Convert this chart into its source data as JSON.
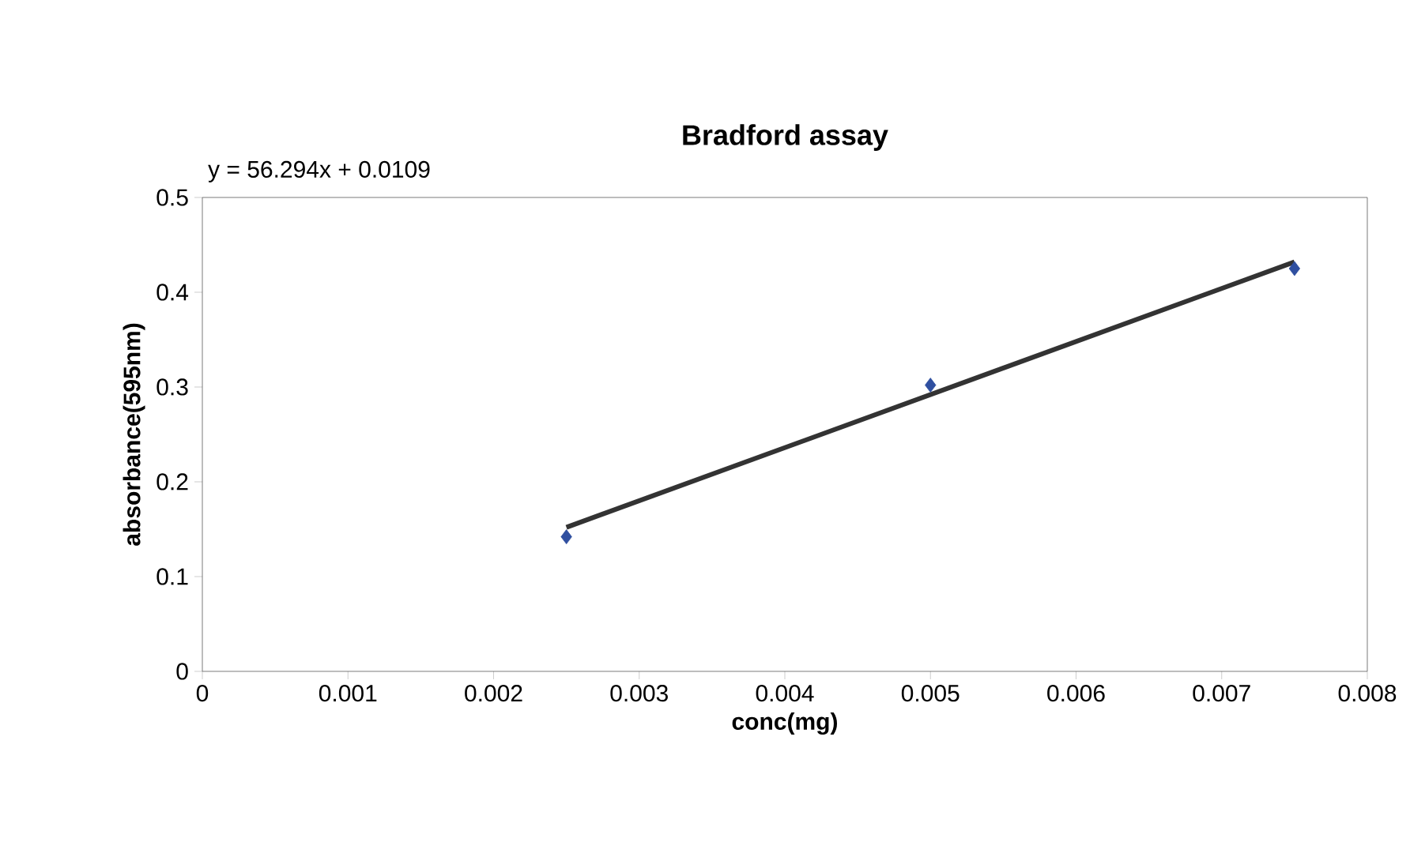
{
  "chart_data": {
    "type": "scatter",
    "title": "Bradford assay",
    "xlabel": "conc(mg)",
    "ylabel": "absorbance(595nm)",
    "annotations": [
      "y = 56.294x + 0.0109"
    ],
    "series": [
      {
        "color": "#2f4fa0",
        "marker": "diamond",
        "x": [
          0.0025,
          0.005,
          0.0075
        ],
        "values": [
          0.142,
          0.302,
          0.425
        ]
      },
      {
        "type": "line",
        "color": "#333333",
        "line_style": "solid",
        "x": [
          0.0025,
          0.0075
        ],
        "values": [
          0.152,
          0.432
        ]
      }
    ],
    "xlim": [
      0,
      0.008
    ],
    "xticks": [
      0,
      0.001,
      0.002,
      0.003,
      0.004,
      0.005,
      0.006,
      0.007,
      0.008
    ],
    "ylim": [
      0,
      0.5
    ],
    "yticks": [
      0,
      0.1,
      0.2,
      0.3,
      0.4,
      0.5
    ],
    "grid": false
  }
}
